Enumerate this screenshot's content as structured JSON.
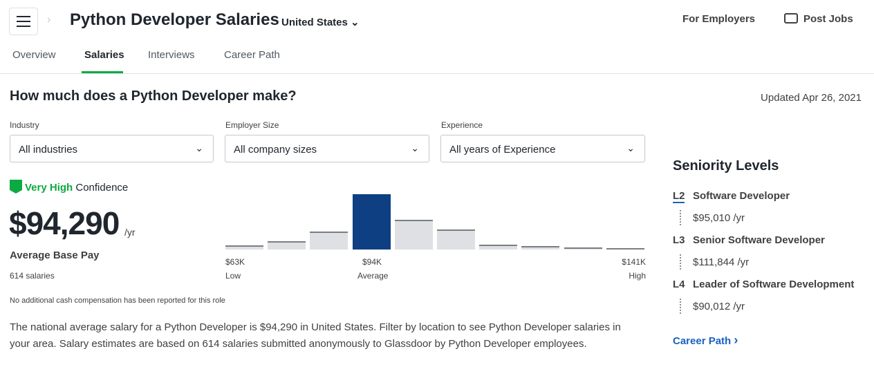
{
  "header": {
    "title": "Python Developer Salaries",
    "location": "United States",
    "for_employers": "For Employers",
    "post_jobs": "Post Jobs"
  },
  "tabs": [
    {
      "label": "Overview"
    },
    {
      "label": "Salaries",
      "active": true
    },
    {
      "label": "Interviews"
    },
    {
      "label": "Career Path"
    }
  ],
  "main": {
    "heading": "How much does a Python Developer make?",
    "updated": "Updated Apr 26, 2021",
    "filters": [
      {
        "label": "Industry",
        "value": "All industries"
      },
      {
        "label": "Employer Size",
        "value": "All company sizes"
      },
      {
        "label": "Experience",
        "value": "All years of Experience"
      }
    ],
    "confidence_level": "Very High",
    "confidence_word": "Confidence",
    "pay": "$94,290",
    "per": "/yr",
    "pay_label": "Average Base Pay",
    "count": "614 salaries",
    "note": "No additional cash compensation has been reported for this role",
    "paragraph": "The national average salary for a Python Developer is $94,290 in United States. Filter by location to see Python Developer salaries in your area. Salary estimates are based on 614 salaries submitted anonymously to Glassdoor by Python Developer employees."
  },
  "histogram": {
    "relative_heights": [
      7,
      15,
      32,
      100,
      54,
      36,
      9,
      6,
      4,
      2
    ],
    "highlight_index": 3,
    "labels": [
      {
        "value": "$63K",
        "caption": "Low"
      },
      {
        "value": "$94K",
        "caption": "Average"
      },
      {
        "value": "$141K",
        "caption": "High"
      }
    ],
    "accent": "#0d3f82"
  },
  "seniority": {
    "title": "Seniority Levels",
    "levels": [
      {
        "code": "L2",
        "title": "Software Developer",
        "salary": "$95,010 /yr"
      },
      {
        "code": "L3",
        "title": "Senior Software Developer",
        "salary": "$111,844 /yr"
      },
      {
        "code": "L4",
        "title": "Leader of Software Development",
        "salary": "$90,012 /yr"
      }
    ],
    "link": "Career Path"
  }
}
